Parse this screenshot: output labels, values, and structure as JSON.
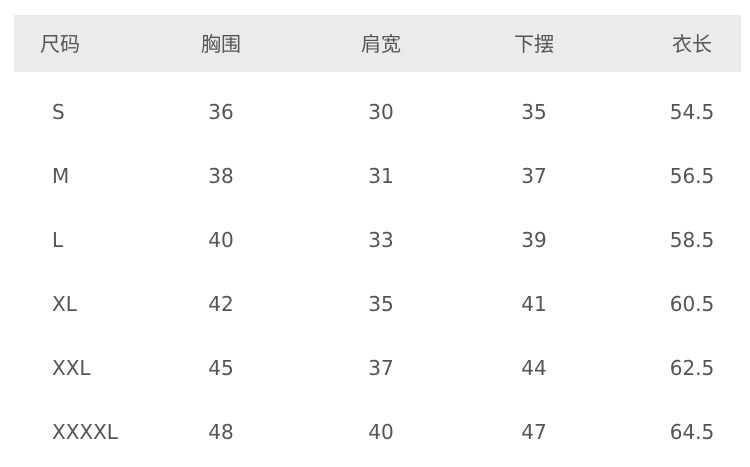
{
  "table": {
    "header": [
      "尺码",
      "胸围",
      "肩宽",
      "下摆",
      "衣长"
    ],
    "rows": [
      [
        "S",
        "36",
        "30",
        "35",
        "54.5"
      ],
      [
        "M",
        "38",
        "31",
        "37",
        "56.5"
      ],
      [
        "L",
        "40",
        "33",
        "39",
        "58.5"
      ],
      [
        "XL",
        "42",
        "35",
        "41",
        "60.5"
      ],
      [
        "XXL",
        "45",
        "37",
        "44",
        "62.5"
      ],
      [
        "XXXXL",
        "48",
        "40",
        "47",
        "64.5"
      ]
    ]
  }
}
